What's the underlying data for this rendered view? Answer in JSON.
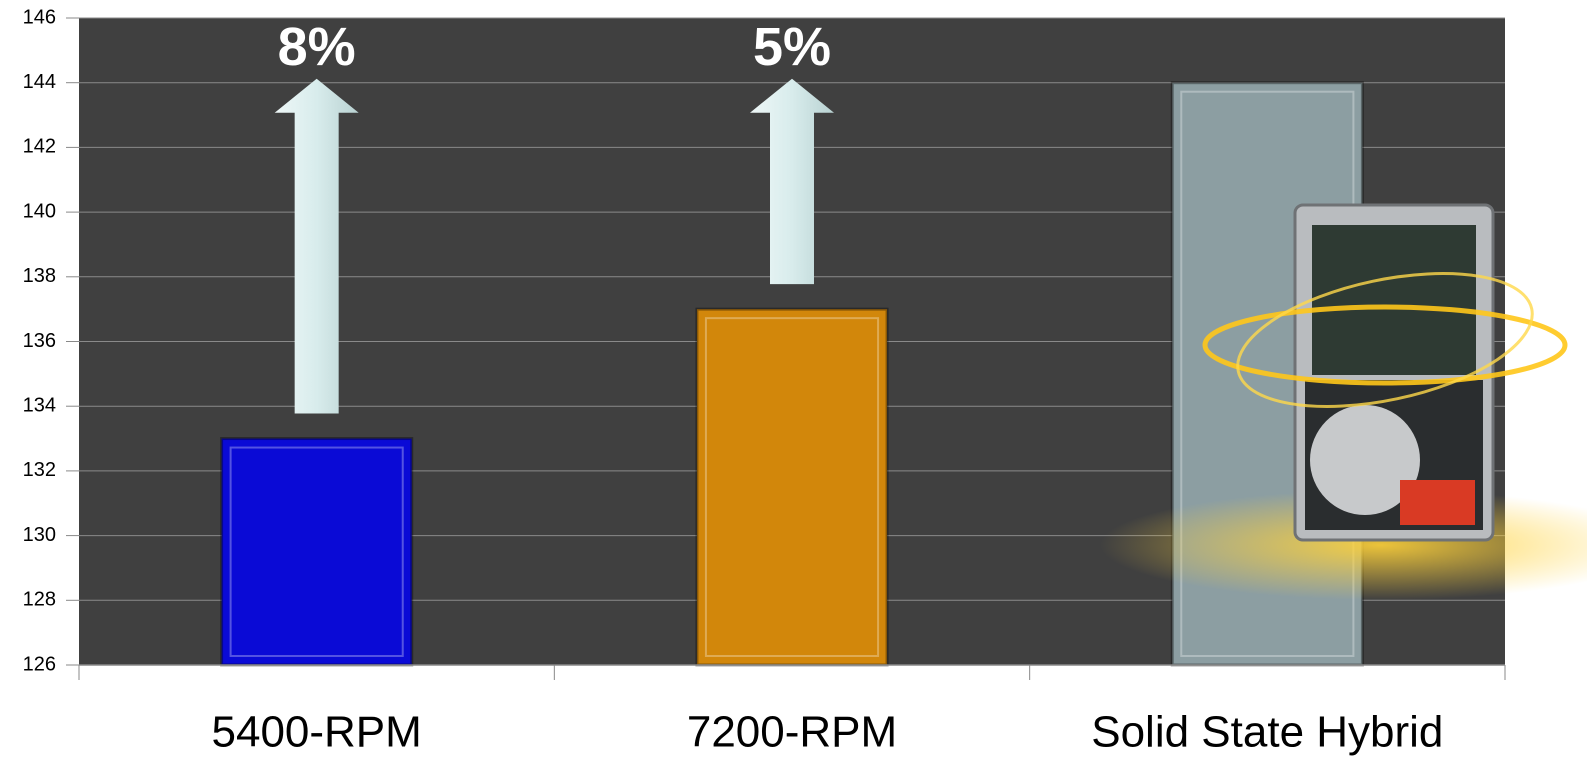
{
  "chart_data": {
    "type": "bar",
    "categories": [
      "5400-RPM",
      "7200-RPM",
      "Solid State Hybrid"
    ],
    "values": [
      133,
      137,
      144
    ],
    "colors": [
      "#0a0ad6",
      "#d2870b",
      "#8c9ea2"
    ],
    "annotations": [
      "8%",
      "5%",
      null
    ],
    "ylim": [
      126,
      146
    ],
    "yticks": [
      126,
      128,
      130,
      132,
      134,
      136,
      138,
      140,
      142,
      144,
      146
    ],
    "grid": true
  }
}
